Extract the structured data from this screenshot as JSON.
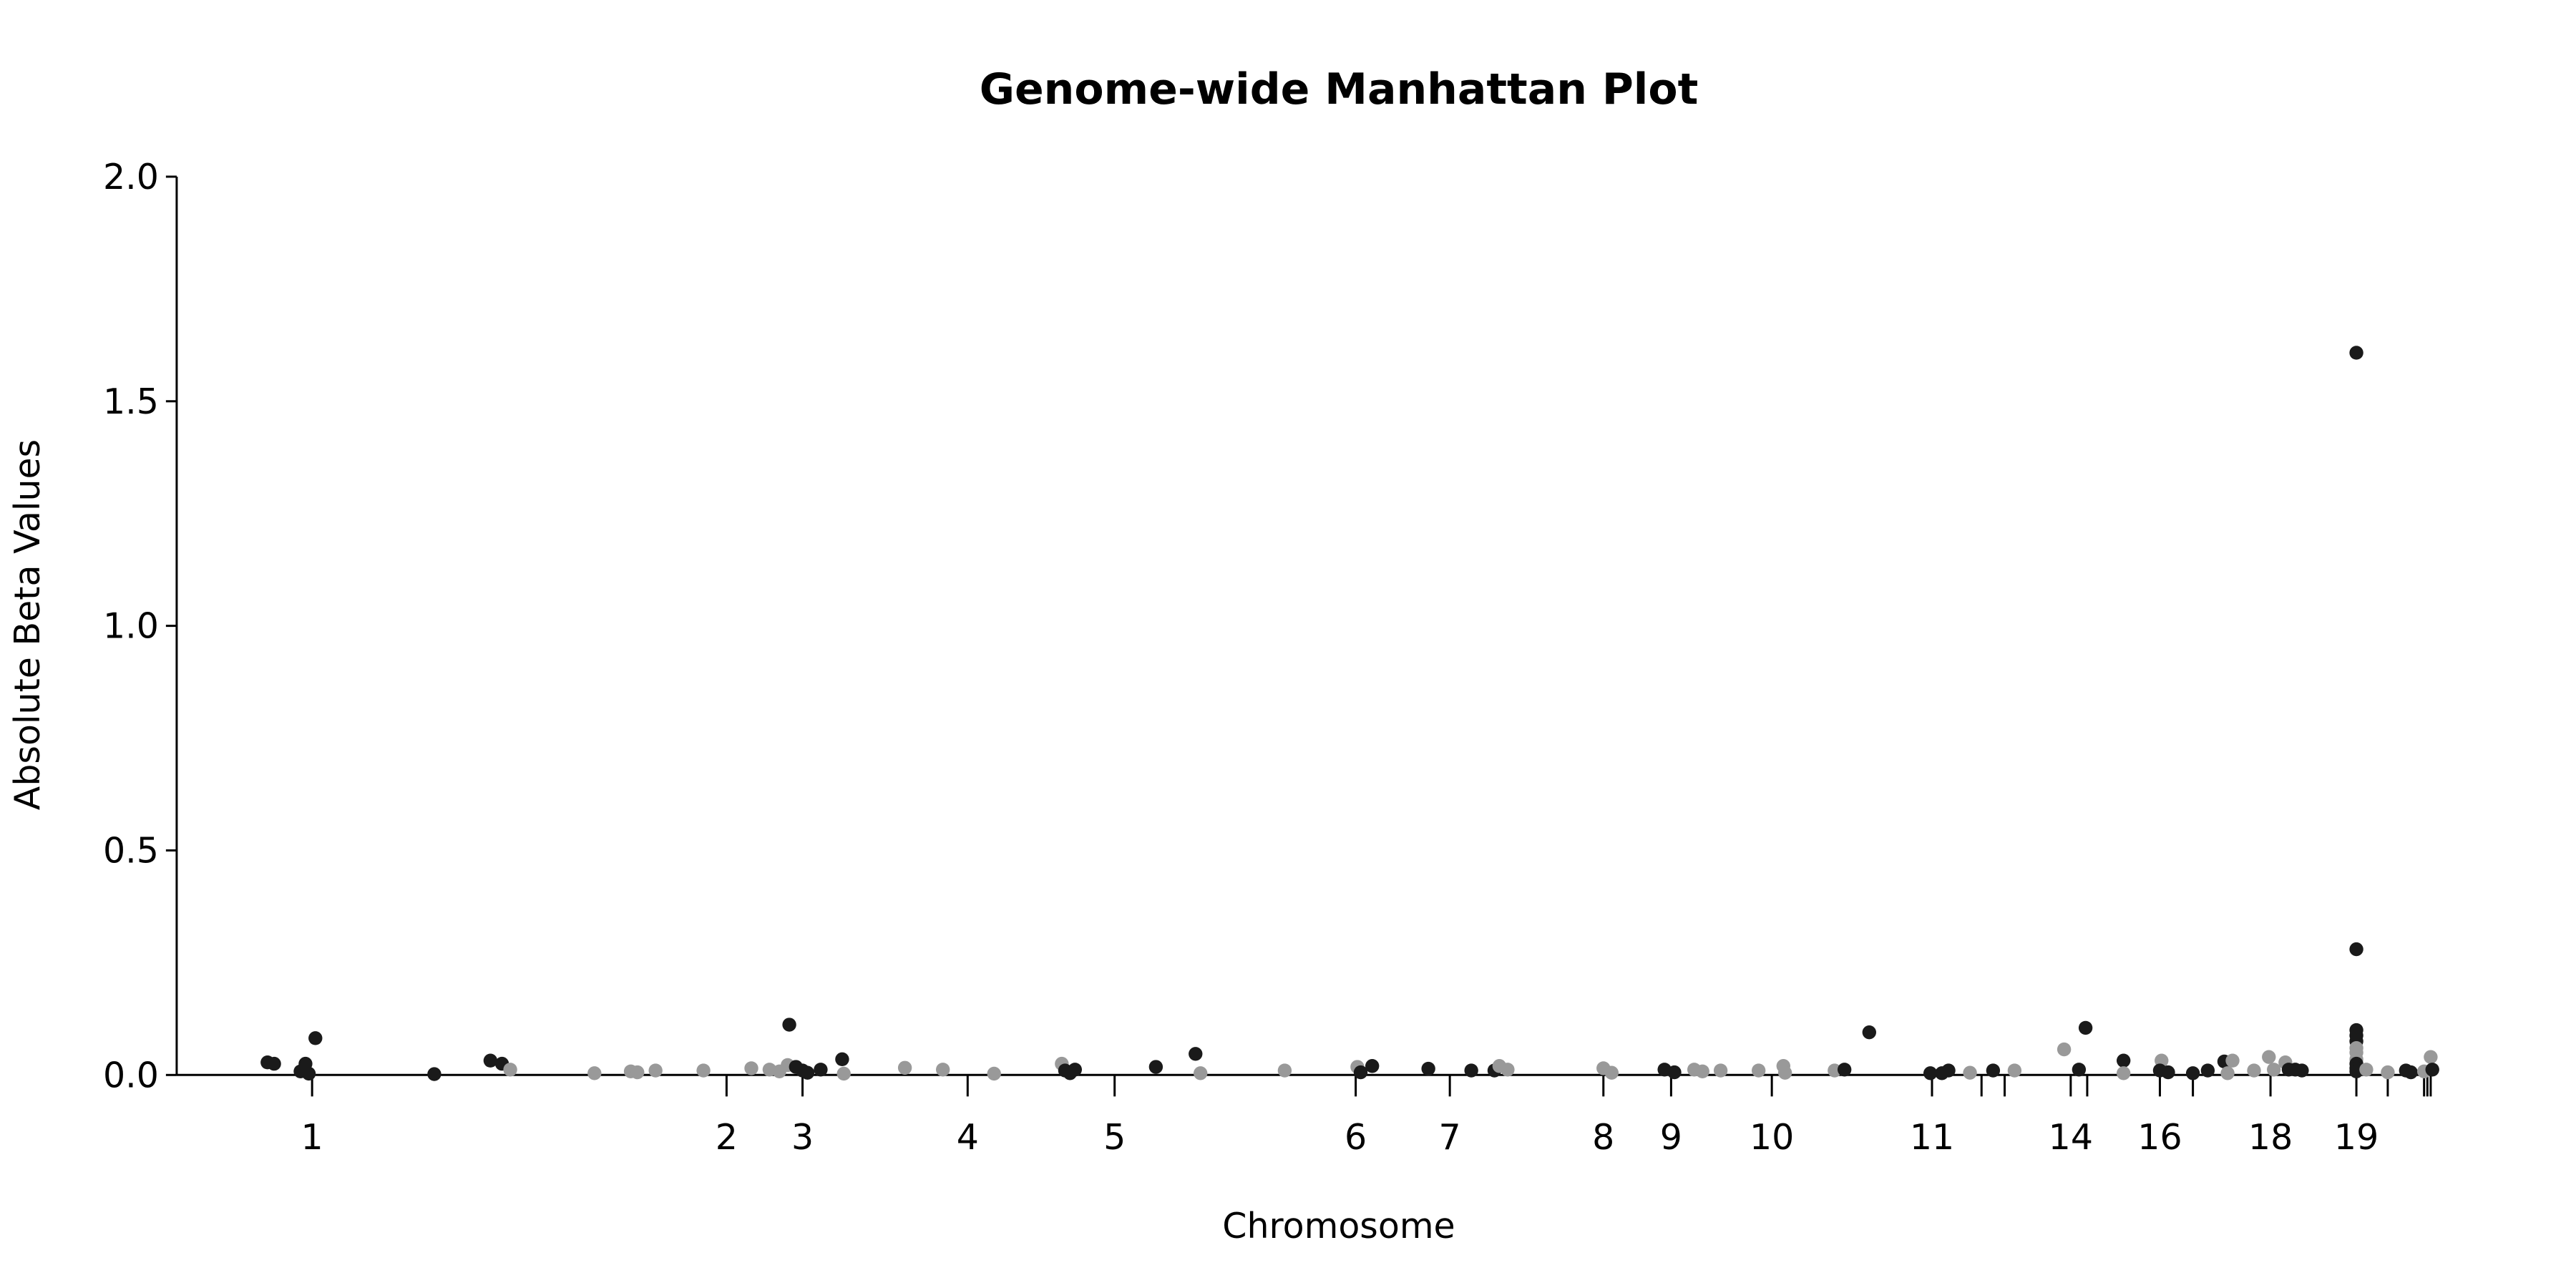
{
  "chart_data": {
    "type": "scatter",
    "title": "Genome-wide Manhattan Plot",
    "xlabel": "Chromosome",
    "ylabel": "Absolute Beta Values",
    "ylim": [
      0,
      2.0
    ],
    "y_ticks": [
      "0.0",
      "0.5",
      "1.0",
      "1.5",
      "2.0"
    ],
    "grid": false,
    "legend": "none",
    "colors": {
      "odd": "#1a1a1a",
      "even": "#999999"
    },
    "chromosomes": [
      {
        "label": "1",
        "start": 0.0,
        "center": 0.1,
        "end": 0.19
      },
      {
        "label": "",
        "start": 0.19,
        "center": 0.25,
        "end": 0.33
      },
      {
        "label": "2",
        "start": 0.33,
        "center": 0.38,
        "end": 0.425
      },
      {
        "label": "3",
        "start": 0.425,
        "center": 0.453,
        "end": 0.48
      },
      {
        "label": "",
        "start": 0.48,
        "center": 0.494,
        "end": 0.51
      },
      {
        "label": "4",
        "start": 0.51,
        "center": 0.542,
        "end": 0.575
      },
      {
        "label": "5",
        "start": 0.575,
        "center": 0.596,
        "end": 0.615
      },
      {
        "label": "",
        "start": 0.615,
        "center": 0.644,
        "end": 0.674
      },
      {
        "label": "6",
        "start": 0.674,
        "center": 0.685,
        "end": 0.7
      },
      {
        "label": "7",
        "start": 0.7,
        "center": 0.719,
        "end": 0.74
      },
      {
        "label": "",
        "start": 0.74,
        "center": 0.763,
        "end": 0.787
      },
      {
        "label": "8",
        "start": 0.787,
        "center": 0.797,
        "end": 0.807
      },
      {
        "label": "9",
        "start": 0.807,
        "center": 0.818,
        "end": 0.831
      },
      {
        "label": "10",
        "start": 0.831,
        "center": 0.839,
        "end": 0.847
      },
      {
        "label": "",
        "start": 0.847,
        "center": 0.862,
        "end": 0.877
      },
      {
        "label": "11",
        "start": 0.877,
        "center": 0.882,
        "end": 0.888
      },
      {
        "label": "",
        "start": 0.888,
        "center": 0.898,
        "end": 0.909
      },
      {
        "label": "",
        "start": 0.909,
        "center": 0.915,
        "end": 0.922
      },
      {
        "label": "",
        "start": 0.922,
        "center": 0.9225,
        "end": 0.923
      },
      {
        "label": "14",
        "start": 0.923,
        "center": 0.924,
        "end": 0.925
      },
      {
        "label": "",
        "start": 0.925,
        "center": 0.927,
        "end": 0.929
      },
      {
        "label": "16",
        "start": 0.929,
        "center": 0.931,
        "end": 0.933
      },
      {
        "label": "",
        "start": 0.933,
        "center": 0.9345,
        "end": 0.936
      },
      {
        "label": "18",
        "start": 0.936,
        "center": 0.937,
        "end": 0.938
      },
      {
        "label": "19",
        "start": 0.938,
        "center": 0.9395,
        "end": 0.941
      },
      {
        "label": "",
        "start": 0.941,
        "center": 0.9425,
        "end": 0.944
      },
      {
        "label": "",
        "start": 0.944,
        "center": 0.9445,
        "end": 0.945
      },
      {
        "label": "",
        "start": 0.945,
        "center": 0.9455,
        "end": 0.946
      }
    ],
    "series": [
      {
        "x": [
          0.02,
          0.025,
          0.06,
          0.07,
          0.072,
          0.075,
          0.08,
          0.09,
          0.095,
          0.1,
          0.102,
          0.105,
          0.11,
          0.12,
          0.14,
          0.155,
          0.16,
          0.17,
          0.173,
          0.175,
          0.18,
          0.185
        ],
        "y": [
          0.028,
          0.025,
          0.01,
          0.025,
          0.08,
          0.015,
          0.005,
          0.012,
          0.02,
          0.03,
          0.025,
          0.01,
          0.015,
          0.008,
          0.005,
          0.012,
          0.004,
          0.03,
          0.025,
          0.012,
          0.008,
          0.005
        ]
      }
    ],
    "points": [
      {
        "x": 162,
        "y": 0.028,
        "c": 0
      },
      {
        "x": 166,
        "y": 0.025,
        "c": 0
      },
      {
        "x": 182,
        "y": 0.008,
        "c": 0
      },
      {
        "x": 185,
        "y": 0.025,
        "c": 0
      },
      {
        "x": 191,
        "y": 0.082,
        "c": 0
      },
      {
        "x": 187,
        "y": 0.003,
        "c": 0
      },
      {
        "x": 263,
        "y": 0.002,
        "c": 0
      },
      {
        "x": 297,
        "y": 0.032,
        "c": 0
      },
      {
        "x": 304,
        "y": 0.025,
        "c": 0
      },
      {
        "x": 309,
        "y": 0.012,
        "c": 1
      },
      {
        "x": 360,
        "y": 0.004,
        "c": 1
      },
      {
        "x": 382,
        "y": 0.008,
        "c": 1
      },
      {
        "x": 386,
        "y": 0.006,
        "c": 1
      },
      {
        "x": 397,
        "y": 0.01,
        "c": 1
      },
      {
        "x": 426,
        "y": 0.01,
        "c": 1
      },
      {
        "x": 455,
        "y": 0.015,
        "c": 1
      },
      {
        "x": 466,
        "y": 0.012,
        "c": 1
      },
      {
        "x": 472,
        "y": 0.008,
        "c": 1
      },
      {
        "x": 477,
        "y": 0.022,
        "c": 1
      },
      {
        "x": 478,
        "y": 0.112,
        "c": 0
      },
      {
        "x": 482,
        "y": 0.018,
        "c": 0
      },
      {
        "x": 486,
        "y": 0.01,
        "c": 0
      },
      {
        "x": 489,
        "y": 0.005,
        "c": 0
      },
      {
        "x": 497,
        "y": 0.012,
        "c": 0
      },
      {
        "x": 510,
        "y": 0.035,
        "c": 0
      },
      {
        "x": 511,
        "y": 0.003,
        "c": 1
      },
      {
        "x": 548,
        "y": 0.016,
        "c": 1
      },
      {
        "x": 571,
        "y": 0.012,
        "c": 1
      },
      {
        "x": 602,
        "y": 0.003,
        "c": 1
      },
      {
        "x": 643,
        "y": 0.025,
        "c": 1
      },
      {
        "x": 645,
        "y": 0.01,
        "c": 0
      },
      {
        "x": 651,
        "y": 0.012,
        "c": 0
      },
      {
        "x": 648,
        "y": 0.004,
        "c": 0
      },
      {
        "x": 700,
        "y": 0.018,
        "c": 0
      },
      {
        "x": 724,
        "y": 0.047,
        "c": 0
      },
      {
        "x": 727,
        "y": 0.004,
        "c": 1
      },
      {
        "x": 778,
        "y": 0.01,
        "c": 1
      },
      {
        "x": 822,
        "y": 0.018,
        "c": 1
      },
      {
        "x": 824,
        "y": 0.006,
        "c": 0
      },
      {
        "x": 831,
        "y": 0.02,
        "c": 0
      },
      {
        "x": 865,
        "y": 0.014,
        "c": 0
      },
      {
        "x": 891,
        "y": 0.01,
        "c": 0
      },
      {
        "x": 905,
        "y": 0.01,
        "c": 0
      },
      {
        "x": 908,
        "y": 0.02,
        "c": 1
      },
      {
        "x": 913,
        "y": 0.012,
        "c": 1
      },
      {
        "x": 971,
        "y": 0.015,
        "c": 1
      },
      {
        "x": 976,
        "y": 0.005,
        "c": 1
      },
      {
        "x": 1008,
        "y": 0.012,
        "c": 0
      },
      {
        "x": 1014,
        "y": 0.006,
        "c": 0
      },
      {
        "x": 1026,
        "y": 0.012,
        "c": 1
      },
      {
        "x": 1031,
        "y": 0.008,
        "c": 1
      },
      {
        "x": 1042,
        "y": 0.01,
        "c": 1
      },
      {
        "x": 1065,
        "y": 0.01,
        "c": 1
      },
      {
        "x": 1080,
        "y": 0.02,
        "c": 1
      },
      {
        "x": 1081,
        "y": 0.005,
        "c": 1
      },
      {
        "x": 1111,
        "y": 0.01,
        "c": 1
      },
      {
        "x": 1117,
        "y": 0.012,
        "c": 0
      },
      {
        "x": 1132,
        "y": 0.095,
        "c": 0
      },
      {
        "x": 1169,
        "y": 0.004,
        "c": 0
      },
      {
        "x": 1176,
        "y": 0.004,
        "c": 0
      },
      {
        "x": 1180,
        "y": 0.01,
        "c": 0
      },
      {
        "x": 1193,
        "y": 0.005,
        "c": 1
      },
      {
        "x": 1207,
        "y": 0.01,
        "c": 0
      },
      {
        "x": 1220,
        "y": 0.01,
        "c": 1
      },
      {
        "x": 1250,
        "y": 0.057,
        "c": 1
      },
      {
        "x": 1259,
        "y": 0.012,
        "c": 0
      },
      {
        "x": 1263,
        "y": 0.105,
        "c": 0
      },
      {
        "x": 1286,
        "y": 0.032,
        "c": 0
      },
      {
        "x": 1286,
        "y": 0.004,
        "c": 1
      },
      {
        "x": 1309,
        "y": 0.032,
        "c": 1
      },
      {
        "x": 1308,
        "y": 0.01,
        "c": 0
      },
      {
        "x": 1313,
        "y": 0.006,
        "c": 0
      },
      {
        "x": 1328,
        "y": 0.004,
        "c": 0
      },
      {
        "x": 1337,
        "y": 0.01,
        "c": 0
      },
      {
        "x": 1347,
        "y": 0.03,
        "c": 0
      },
      {
        "x": 1352,
        "y": 0.032,
        "c": 1
      },
      {
        "x": 1349,
        "y": 0.004,
        "c": 1
      },
      {
        "x": 1365,
        "y": 0.01,
        "c": 1
      },
      {
        "x": 1374,
        "y": 0.04,
        "c": 1
      },
      {
        "x": 1377,
        "y": 0.012,
        "c": 1
      },
      {
        "x": 1384,
        "y": 0.028,
        "c": 1
      },
      {
        "x": 1386,
        "y": 0.012,
        "c": 0
      },
      {
        "x": 1390,
        "y": 0.012,
        "c": 0
      },
      {
        "x": 1394,
        "y": 0.01,
        "c": 0
      },
      {
        "x": 1427,
        "y": 1.608,
        "c": 0
      },
      {
        "x": 1427,
        "y": 0.28,
        "c": 0
      },
      {
        "x": 1427,
        "y": 0.1,
        "c": 0
      },
      {
        "x": 1427,
        "y": 0.088,
        "c": 0
      },
      {
        "x": 1427,
        "y": 0.075,
        "c": 0
      },
      {
        "x": 1427,
        "y": 0.06,
        "c": 1
      },
      {
        "x": 1427,
        "y": 0.05,
        "c": 1
      },
      {
        "x": 1427,
        "y": 0.035,
        "c": 1
      },
      {
        "x": 1427,
        "y": 0.025,
        "c": 0
      },
      {
        "x": 1427,
        "y": 0.015,
        "c": 0
      },
      {
        "x": 1427,
        "y": 0.008,
        "c": 0
      },
      {
        "x": 1433,
        "y": 0.012,
        "c": 1
      },
      {
        "x": 1446,
        "y": 0.006,
        "c": 1
      },
      {
        "x": 1457,
        "y": 0.01,
        "c": 0
      },
      {
        "x": 1460,
        "y": 0.006,
        "c": 0
      },
      {
        "x": 1468,
        "y": 0.008,
        "c": 1
      },
      {
        "x": 1472,
        "y": 0.04,
        "c": 1
      },
      {
        "x": 1473,
        "y": 0.012,
        "c": 0
      }
    ],
    "x_ticks": [
      {
        "x": 189,
        "label": "1"
      },
      {
        "x": 440,
        "label": "2"
      },
      {
        "x": 486,
        "label": "3"
      },
      {
        "x": 586,
        "label": "4"
      },
      {
        "x": 675,
        "label": "5"
      },
      {
        "x": 821,
        "label": "6"
      },
      {
        "x": 878,
        "label": "7"
      },
      {
        "x": 971,
        "label": "8"
      },
      {
        "x": 1012,
        "label": "9"
      },
      {
        "x": 1073,
        "label": "10"
      },
      {
        "x": 1170,
        "label": "11"
      },
      {
        "x": 1200,
        "label": ""
      },
      {
        "x": 1214,
        "label": ""
      },
      {
        "x": 1254,
        "label": "14"
      },
      {
        "x": 1264,
        "label": ""
      },
      {
        "x": 1308,
        "label": "16"
      },
      {
        "x": 1328,
        "label": ""
      },
      {
        "x": 1375,
        "label": "18"
      },
      {
        "x": 1427,
        "label": "19"
      },
      {
        "x": 1446,
        "label": ""
      },
      {
        "x": 1468,
        "label": ""
      },
      {
        "x": 1470,
        "label": ""
      },
      {
        "x": 1472,
        "label": ""
      }
    ]
  }
}
